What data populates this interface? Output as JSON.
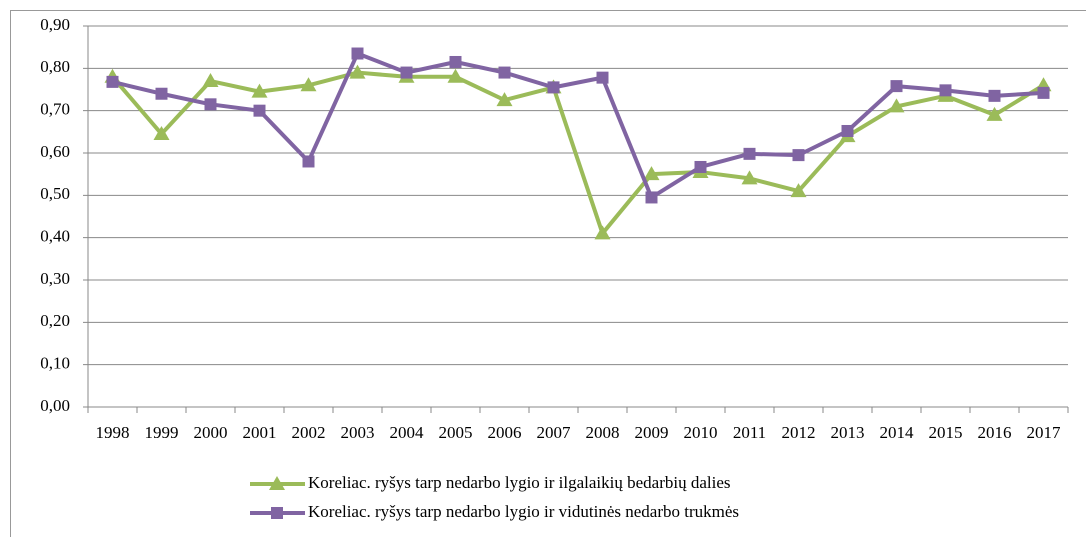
{
  "chart_data": {
    "type": "line",
    "categories": [
      "1998",
      "1999",
      "2000",
      "2001",
      "2002",
      "2003",
      "2004",
      "2005",
      "2006",
      "2007",
      "2008",
      "2009",
      "2010",
      "2011",
      "2012",
      "2013",
      "2014",
      "2015",
      "2016",
      "2017"
    ],
    "series": [
      {
        "name": "Koreliac. ryšys tarp nedarbo lygio ir ilgalaikių bedarbių dalies",
        "color": "#9bbb59",
        "marker": "triangle",
        "values": [
          0.78,
          0.645,
          0.77,
          0.745,
          0.76,
          0.79,
          0.78,
          0.78,
          0.725,
          0.755,
          0.41,
          0.55,
          0.555,
          0.54,
          0.51,
          0.64,
          0.71,
          0.735,
          0.69,
          0.76
        ]
      },
      {
        "name": "Koreliac. ryšys tarp nedarbo lygio ir vidutinės nedarbo trukmės",
        "color": "#8064a2",
        "marker": "square",
        "values": [
          0.768,
          0.74,
          0.715,
          0.7,
          0.58,
          0.835,
          0.79,
          0.815,
          0.79,
          0.755,
          0.778,
          0.495,
          0.567,
          0.598,
          0.595,
          0.652,
          0.758,
          0.748,
          0.735,
          0.742
        ]
      }
    ],
    "ylim": [
      0,
      0.9
    ],
    "yticks": [
      {
        "value": 0,
        "label": "0,00"
      },
      {
        "value": 0.1,
        "label": "0,10"
      },
      {
        "value": 0.2,
        "label": "0,20"
      },
      {
        "value": 0.3,
        "label": "0,30"
      },
      {
        "value": 0.4,
        "label": "0,40"
      },
      {
        "value": 0.5,
        "label": "0,50"
      },
      {
        "value": 0.6,
        "label": "0,60"
      },
      {
        "value": 0.7,
        "label": "0,70"
      },
      {
        "value": 0.8,
        "label": "0,80"
      },
      {
        "value": 0.9,
        "label": "0,90"
      }
    ],
    "grid": true,
    "legend": "bottom"
  }
}
